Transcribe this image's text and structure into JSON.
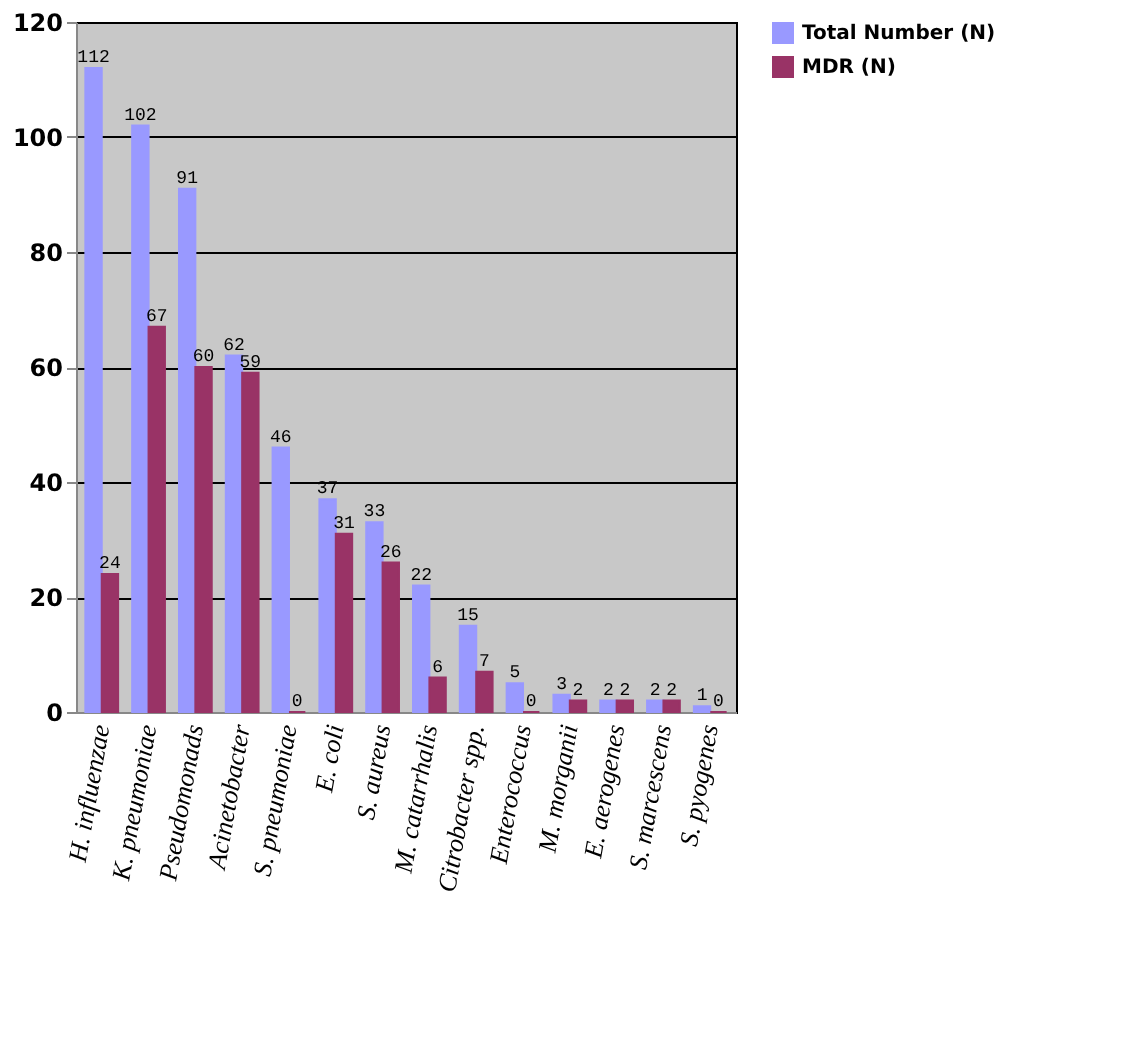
{
  "chart_data": {
    "type": "bar",
    "categories": [
      "H. influenzae",
      "K. pneumoniae",
      "Pseudomonads",
      "Acinetobacter",
      "S. pneumoniae",
      "E. coli",
      "S. aureus",
      "M. catarrhalis",
      "Citrobacter spp.",
      "Enterococcus",
      "M. morganii",
      "E. aerogenes",
      "S. marcescens",
      "S. pyogenes"
    ],
    "series": [
      {
        "name": "Total Number (N)",
        "color": "#9999ff",
        "values": [
          112,
          102,
          91,
          62,
          46,
          37,
          33,
          22,
          15,
          5,
          3,
          2,
          2,
          1
        ]
      },
      {
        "name": "MDR (N)",
        "color": "#993366",
        "values": [
          24,
          67,
          60,
          59,
          0,
          31,
          26,
          6,
          7,
          0,
          2,
          2,
          2,
          0
        ]
      }
    ],
    "ylim": [
      0,
      120
    ],
    "yticks": [
      0,
      20,
      40,
      60,
      80,
      100,
      120
    ],
    "grid": "y",
    "legend": "right",
    "data_labels": true
  }
}
